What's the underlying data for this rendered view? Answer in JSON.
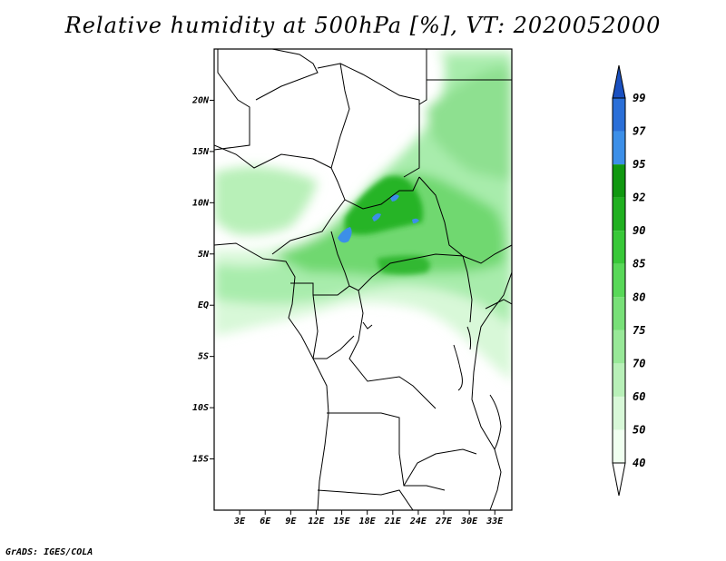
{
  "title": "Relative humidity at 500hPa [%], VT: 2020052000",
  "credit": "GrADS: IGES/COLA",
  "map": {
    "lon_range": [
      0,
      35
    ],
    "lat_range": [
      -20,
      25
    ],
    "lat_ticks": [
      {
        "lat": 20,
        "label": "20N"
      },
      {
        "lat": 15,
        "label": "15N"
      },
      {
        "lat": 10,
        "label": "10N"
      },
      {
        "lat": 5,
        "label": "5N"
      },
      {
        "lat": 0,
        "label": "EQ"
      },
      {
        "lat": -5,
        "label": "5S"
      },
      {
        "lat": -10,
        "label": "10S"
      },
      {
        "lat": -15,
        "label": "15S"
      }
    ],
    "lon_ticks": [
      {
        "lon": 3,
        "label": "3E"
      },
      {
        "lon": 6,
        "label": "6E"
      },
      {
        "lon": 9,
        "label": "9E"
      },
      {
        "lon": 12,
        "label": "12E"
      },
      {
        "lon": 15,
        "label": "15E"
      },
      {
        "lon": 18,
        "label": "18E"
      },
      {
        "lon": 21,
        "label": "21E"
      },
      {
        "lon": 24,
        "label": "24E"
      },
      {
        "lon": 27,
        "label": "27E"
      },
      {
        "lon": 30,
        "label": "30E"
      },
      {
        "lon": 33,
        "label": "33E"
      }
    ]
  },
  "colorbar": {
    "levels": [
      "40",
      "50",
      "60",
      "70",
      "75",
      "80",
      "85",
      "90",
      "92",
      "95",
      "97",
      "99"
    ],
    "colors": [
      "#f0fff0",
      "#d8f8d8",
      "#b8f0b8",
      "#98e898",
      "#78e078",
      "#58d858",
      "#38c838",
      "#20b020",
      "#109810",
      "#3c8fe8",
      "#2a6fd8",
      "#1a50c0"
    ]
  }
}
